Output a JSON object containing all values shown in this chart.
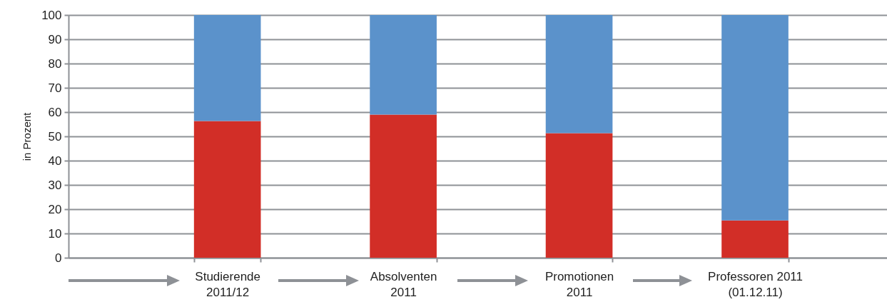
{
  "chart_data": {
    "type": "bar",
    "stacked": true,
    "ylabel": "in Prozent",
    "categories": [
      "Studierende\n2011/12",
      "Absolventen\n2011",
      "Promotionen\n2011",
      "Professoren 2011\n(01.12.11)"
    ],
    "series": [
      {
        "color": "#d22e27",
        "values": [
          56.3,
          59.0,
          51.3,
          15.4
        ]
      },
      {
        "color": "#5b92cb",
        "values": [
          43.7,
          41.0,
          48.7,
          84.6
        ]
      }
    ],
    "ylim": [
      0,
      100
    ],
    "yticks": [
      0,
      10,
      20,
      30,
      40,
      50,
      60,
      70,
      80,
      90,
      100
    ],
    "grid": "y",
    "legend": false
  }
}
